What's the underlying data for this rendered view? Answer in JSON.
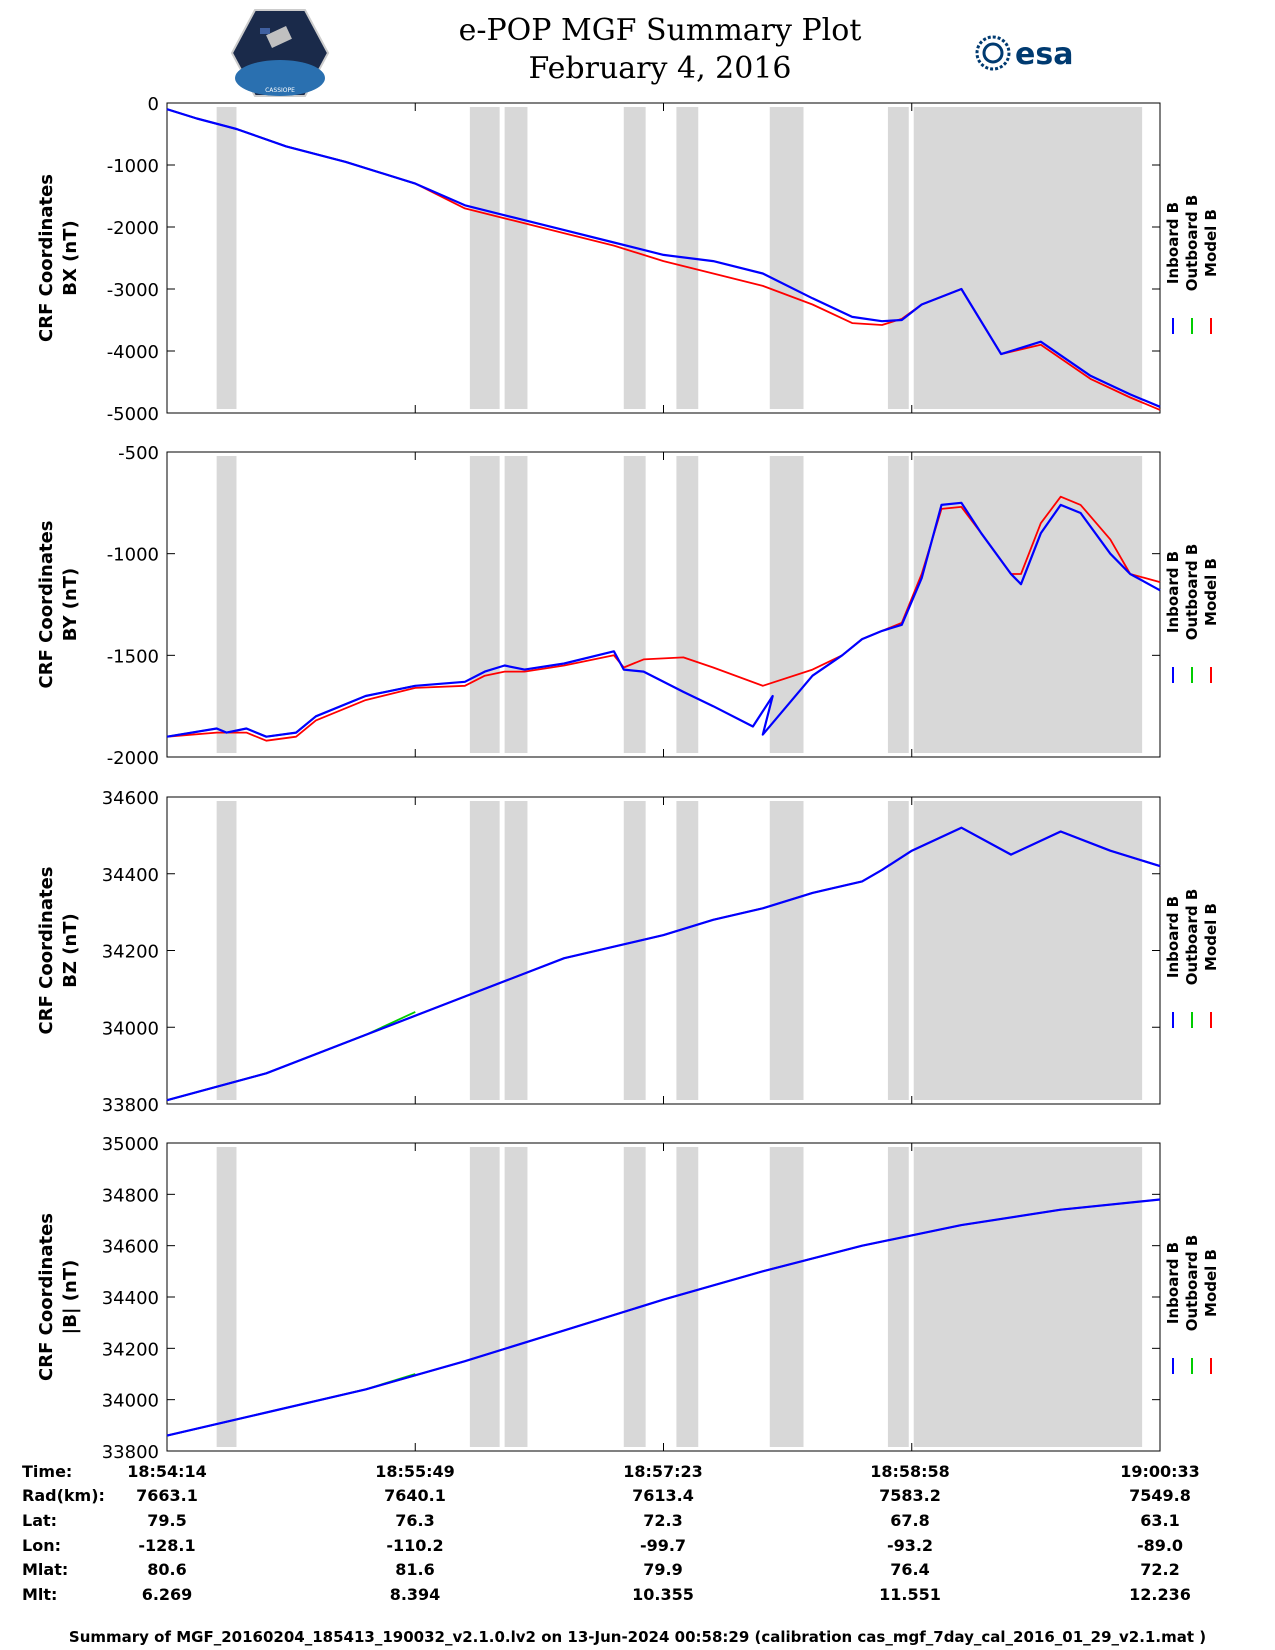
{
  "header": {
    "title": "e-POP MGF Summary Plot",
    "date": "February 4, 2016",
    "left_logo_text": "CASSIOPE",
    "right_logo_text": "esa"
  },
  "legend": [
    "Inboard B",
    "Outboard B",
    "Model B"
  ],
  "colors": {
    "inboard": "#0000ff",
    "outboard": "#00cc00",
    "model": "#ff0000",
    "gap": "#d8d8d8"
  },
  "chart_data": [
    {
      "type": "line",
      "ylabel_line1": "CRF Coordinates",
      "ylabel_line2": "BX (nT)",
      "ylim": [
        -5000,
        0
      ],
      "yticks": [
        "0",
        "-1000",
        "-2000",
        "-3000",
        "-4000",
        "-5000"
      ],
      "ytick_values": [
        0,
        -1000,
        -2000,
        -3000,
        -4000,
        -5000
      ],
      "series": [
        {
          "name": "Inboard B",
          "x": [
            0,
            0.03,
            0.07,
            0.12,
            0.18,
            0.25,
            0.3,
            0.35,
            0.4,
            0.45,
            0.5,
            0.55,
            0.6,
            0.65,
            0.69,
            0.72,
            0.74,
            0.76,
            0.8,
            0.84,
            0.88,
            0.93,
            0.97,
            1.0
          ],
          "y": [
            -100,
            -250,
            -420,
            -700,
            -950,
            -1300,
            -1650,
            -1850,
            -2050,
            -2250,
            -2450,
            -2550,
            -2750,
            -3150,
            -3450,
            -3520,
            -3500,
            -3250,
            -3000,
            -4050,
            -3850,
            -4400,
            -4700,
            -4900
          ]
        },
        {
          "name": "Outboard B",
          "x": [
            0,
            0.03,
            0.07,
            0.12,
            0.18,
            0.25
          ],
          "y": [
            -100,
            -250,
            -420,
            -700,
            -950,
            -1300
          ]
        },
        {
          "name": "Model B",
          "x": [
            0,
            0.03,
            0.07,
            0.12,
            0.18,
            0.25,
            0.3,
            0.35,
            0.4,
            0.45,
            0.5,
            0.55,
            0.6,
            0.65,
            0.69,
            0.72,
            0.74,
            0.76,
            0.8,
            0.84,
            0.88,
            0.93,
            0.97,
            1.0
          ],
          "y": [
            -100,
            -250,
            -420,
            -700,
            -950,
            -1300,
            -1700,
            -1900,
            -2100,
            -2300,
            -2550,
            -2750,
            -2950,
            -3250,
            -3550,
            -3580,
            -3480,
            -3250,
            -3000,
            -4050,
            -3900,
            -4450,
            -4750,
            -4950
          ]
        }
      ]
    },
    {
      "type": "line",
      "ylabel_line1": "CRF Coordinates",
      "ylabel_line2": "BY (nT)",
      "ylim": [
        -2000,
        -500
      ],
      "yticks": [
        "-500",
        "-1000",
        "-1500",
        "-2000"
      ],
      "ytick_values": [
        -500,
        -1000,
        -1500,
        -2000
      ],
      "series": [
        {
          "name": "Inboard B",
          "x": [
            0,
            0.05,
            0.06,
            0.08,
            0.1,
            0.13,
            0.15,
            0.2,
            0.25,
            0.3,
            0.32,
            0.34,
            0.36,
            0.4,
            0.45,
            0.46,
            0.48,
            0.52,
            0.55,
            0.59,
            0.61,
            0.6,
            0.65,
            0.68,
            0.7,
            0.72,
            0.74,
            0.76,
            0.78,
            0.8,
            0.82,
            0.85,
            0.86,
            0.88,
            0.9,
            0.92,
            0.95,
            0.97,
            1.0
          ],
          "y": [
            -1900,
            -1860,
            -1880,
            -1860,
            -1900,
            -1880,
            -1800,
            -1700,
            -1650,
            -1630,
            -1580,
            -1550,
            -1570,
            -1540,
            -1480,
            -1570,
            -1580,
            -1680,
            -1750,
            -1850,
            -1700,
            -1890,
            -1600,
            -1500,
            -1420,
            -1380,
            -1350,
            -1120,
            -760,
            -750,
            -900,
            -1100,
            -1150,
            -900,
            -760,
            -800,
            -1000,
            -1100,
            -1180
          ]
        },
        {
          "name": "Outboard B",
          "x": [
            0,
            0.05,
            0.06,
            0.08,
            0.1,
            0.13,
            0.15,
            0.2,
            0.25
          ],
          "y": [
            -1900,
            -1860,
            -1880,
            -1860,
            -1900,
            -1880,
            -1800,
            -1700,
            -1650
          ]
        },
        {
          "name": "Model B",
          "x": [
            0,
            0.05,
            0.08,
            0.1,
            0.13,
            0.15,
            0.2,
            0.25,
            0.3,
            0.32,
            0.34,
            0.36,
            0.4,
            0.45,
            0.46,
            0.48,
            0.52,
            0.55,
            0.6,
            0.65,
            0.68,
            0.7,
            0.72,
            0.74,
            0.76,
            0.78,
            0.8,
            0.82,
            0.85,
            0.86,
            0.88,
            0.9,
            0.92,
            0.95,
            0.97,
            1.0
          ],
          "y": [
            -1900,
            -1880,
            -1880,
            -1920,
            -1900,
            -1820,
            -1720,
            -1660,
            -1650,
            -1600,
            -1580,
            -1580,
            -1550,
            -1500,
            -1560,
            -1520,
            -1510,
            -1560,
            -1650,
            -1570,
            -1500,
            -1420,
            -1380,
            -1340,
            -1100,
            -780,
            -770,
            -900,
            -1100,
            -1100,
            -850,
            -720,
            -760,
            -930,
            -1100,
            -1140
          ]
        }
      ]
    },
    {
      "type": "line",
      "ylabel_line1": "CRF Coordinates",
      "ylabel_line2": "BZ (nT)",
      "ylim": [
        33800,
        34600
      ],
      "yticks": [
        "34600",
        "34400",
        "34200",
        "34000",
        "33800"
      ],
      "ytick_values": [
        34600,
        34400,
        34200,
        34000,
        33800
      ],
      "series": [
        {
          "name": "Inboard B",
          "x": [
            0,
            0.1,
            0.2,
            0.3,
            0.4,
            0.5,
            0.55,
            0.6,
            0.65,
            0.7,
            0.72,
            0.75,
            0.8,
            0.85,
            0.9,
            0.95,
            1.0
          ],
          "y": [
            33810,
            33880,
            33980,
            34080,
            34180,
            34240,
            34280,
            34310,
            34350,
            34380,
            34410,
            34460,
            34520,
            34450,
            34510,
            34460,
            34420
          ]
        },
        {
          "name": "Outboard B",
          "x": [
            0,
            0.1,
            0.2,
            0.25
          ],
          "y": [
            33810,
            33880,
            33980,
            34040
          ]
        },
        {
          "name": "Model B",
          "x": [
            0,
            0.1,
            0.2,
            0.3,
            0.4,
            0.5,
            0.55,
            0.6,
            0.65,
            0.7,
            0.72,
            0.75,
            0.8,
            0.85,
            0.9,
            0.95,
            1.0
          ],
          "y": [
            33810,
            33880,
            33980,
            34080,
            34180,
            34240,
            34280,
            34310,
            34350,
            34380,
            34410,
            34460,
            34520,
            34450,
            34510,
            34460,
            34420
          ]
        }
      ]
    },
    {
      "type": "line",
      "ylabel_line1": "CRF Coordinates",
      "ylabel_line2": "|B| (nT)",
      "ylim": [
        33800,
        35000
      ],
      "yticks": [
        "35000",
        "34800",
        "34600",
        "34400",
        "34200",
        "34000",
        "33800"
      ],
      "ytick_values": [
        35000,
        34800,
        34600,
        34400,
        34200,
        34000,
        33800
      ],
      "series": [
        {
          "name": "Inboard B",
          "x": [
            0,
            0.1,
            0.2,
            0.3,
            0.4,
            0.5,
            0.6,
            0.7,
            0.8,
            0.9,
            1.0
          ],
          "y": [
            33860,
            33950,
            34040,
            34150,
            34270,
            34390,
            34500,
            34600,
            34680,
            34740,
            34780
          ]
        },
        {
          "name": "Outboard B",
          "x": [
            0,
            0.1,
            0.2,
            0.25
          ],
          "y": [
            33860,
            33950,
            34040,
            34100
          ]
        },
        {
          "name": "Model B",
          "x": [
            0,
            0.1,
            0.2,
            0.3,
            0.4,
            0.5,
            0.6,
            0.7,
            0.8,
            0.9,
            1.0
          ],
          "y": [
            33860,
            33950,
            34040,
            34150,
            34270,
            34390,
            34500,
            34600,
            34680,
            34740,
            34780
          ]
        }
      ]
    }
  ],
  "gaps": [
    [
      0.05,
      0.07
    ],
    [
      0.305,
      0.335
    ],
    [
      0.34,
      0.363
    ],
    [
      0.46,
      0.482
    ],
    [
      0.513,
      0.535
    ],
    [
      0.607,
      0.641
    ],
    [
      0.726,
      0.747
    ],
    [
      0.752,
      0.982
    ]
  ],
  "ephemeris": {
    "labels": [
      "Time:",
      "Rad(km):",
      "Lat:",
      "Lon:",
      "Mlat:",
      "Mlt:"
    ],
    "columns": [
      [
        "18:54:14",
        "7663.1",
        "79.5",
        "-128.1",
        "80.6",
        "6.269"
      ],
      [
        "18:55:49",
        "7640.1",
        "76.3",
        "-110.2",
        "81.6",
        "8.394"
      ],
      [
        "18:57:23",
        "7613.4",
        "72.3",
        "-99.7",
        "79.9",
        "10.355"
      ],
      [
        "18:58:58",
        "7583.2",
        "67.8",
        "-93.2",
        "76.4",
        "11.551"
      ],
      [
        "19:00:33",
        "7549.8",
        "63.1",
        "-89.0",
        "72.2",
        "12.236"
      ]
    ]
  },
  "footer": "Summary of MGF_20160204_185413_190032_v2.1.0.lv2 on 13-Jun-2024 00:58:29 (calibration cas_mgf_7day_cal_2016_01_29_v2.1.mat )"
}
